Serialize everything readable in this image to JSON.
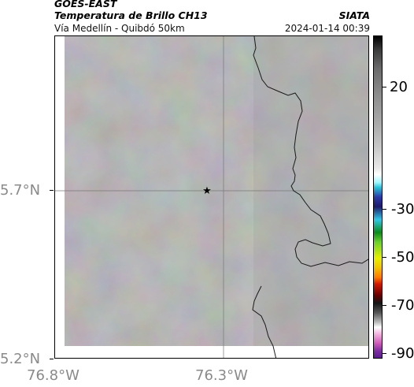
{
  "header": {
    "satellite": "GOES-EAST",
    "product": "Temperatura de Brillo CH13",
    "region": "Vía Medellín - Quibdó 50km",
    "source": "SIATA",
    "timestamp": "2024-01-14 00:39"
  },
  "axes": {
    "lat_labels": [
      "5.7°N",
      "5.2°N"
    ],
    "lon_labels": [
      "76.8°W",
      "76.3°W"
    ]
  },
  "colorbar": {
    "tick_labels": [
      "20",
      "-30",
      "-50",
      "-70",
      "-90"
    ]
  },
  "map": {
    "marker": "star-icon",
    "background_color": "#8e8e8e",
    "border_color": "#000000"
  }
}
